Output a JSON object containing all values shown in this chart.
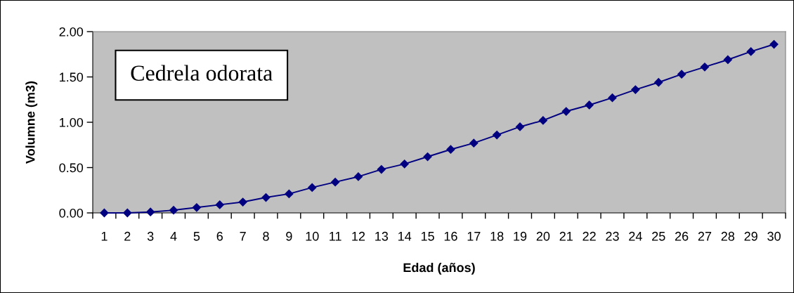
{
  "chart_data": {
    "type": "line",
    "xlabel": "Edad (años)",
    "ylabel": "Volumne (m3)",
    "categories": [
      "1",
      "2",
      "3",
      "4",
      "5",
      "6",
      "7",
      "8",
      "9",
      "10",
      "11",
      "12",
      "13",
      "14",
      "15",
      "16",
      "17",
      "18",
      "19",
      "20",
      "21",
      "22",
      "23",
      "24",
      "25",
      "26",
      "27",
      "28",
      "29",
      "30"
    ],
    "series": [
      {
        "color": "#000080",
        "values": [
          0.0,
          0.0,
          0.01,
          0.03,
          0.06,
          0.09,
          0.12,
          0.17,
          0.21,
          0.28,
          0.34,
          0.4,
          0.48,
          0.54,
          0.62,
          0.7,
          0.77,
          0.86,
          0.95,
          1.02,
          1.12,
          1.19,
          1.27,
          1.36,
          1.44,
          1.53,
          1.61,
          1.69,
          1.78,
          1.86
        ]
      }
    ],
    "ylim": [
      0,
      2
    ],
    "yticks": [
      {
        "value": 0,
        "label": "0.00"
      },
      {
        "value": 0.5,
        "label": "0.50"
      },
      {
        "value": 1,
        "label": "1.00"
      },
      {
        "value": 1.5,
        "label": "1.50"
      },
      {
        "value": 2,
        "label": "2.00"
      }
    ],
    "marker": "diamond",
    "line_style": "solid",
    "annotations": [
      "Cedrela odorata"
    ]
  }
}
